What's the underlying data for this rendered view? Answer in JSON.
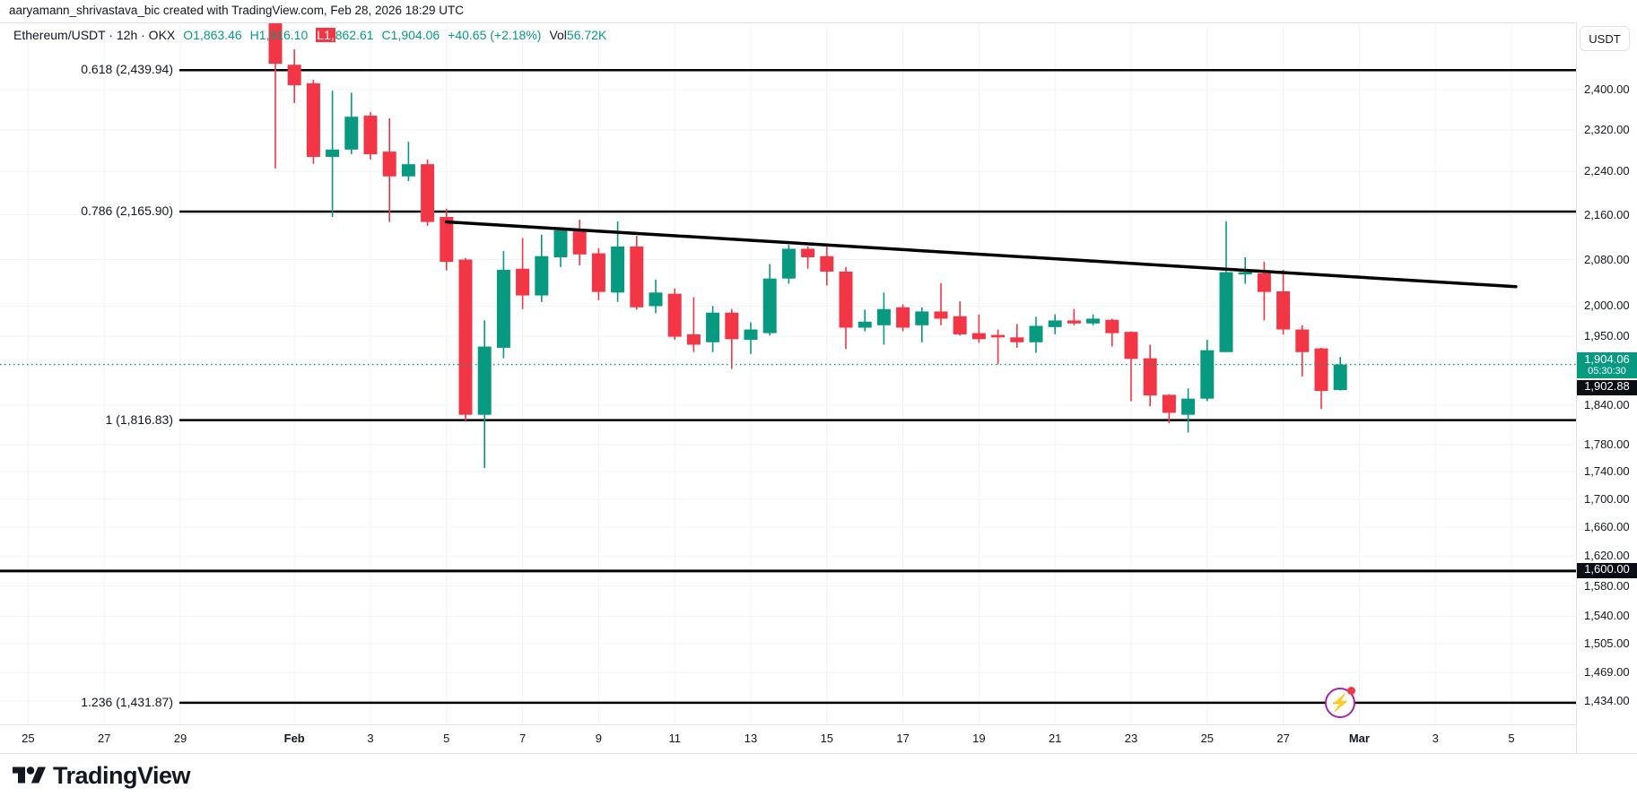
{
  "attribution": "aaryamann_shrivastava_bic created with TradingView.com, Feb 28, 2026 18:29 UTC",
  "legend": {
    "title": "Ethereum/USDT · 12h · OKX",
    "open": "O1,863.46",
    "high": "H1,916.10",
    "low_highlighted": "L1,",
    "low_rest": "862.61",
    "close": "C1,904.06",
    "change": "+40.65 (+2.18%)",
    "vol_label": "Vol",
    "vol_value": "56.72K"
  },
  "colors": {
    "up": "#089981",
    "down": "#f23645",
    "drawing_line": "#000000",
    "grid": "#f0f3fa",
    "text": "#131722",
    "axis_border": "#e0e3eb",
    "badge_dark": "#0c0e15",
    "flash_purple": "#a626aa"
  },
  "right_axis": {
    "currency_button": "USDT",
    "labels": [
      {
        "text": "2,400.00",
        "price": 2400
      },
      {
        "text": "2,320.00",
        "price": 2320
      },
      {
        "text": "2,240.00",
        "price": 2240
      },
      {
        "text": "2,160.00",
        "price": 2160
      },
      {
        "text": "2,080.00",
        "price": 2080
      },
      {
        "text": "2,000.00",
        "price": 2000
      },
      {
        "text": "1,950.00",
        "price": 1950
      },
      {
        "text": "1,840.00",
        "price": 1840
      },
      {
        "text": "1,780.00",
        "price": 1780
      },
      {
        "text": "1,740.00",
        "price": 1740
      },
      {
        "text": "1,700.00",
        "price": 1700
      },
      {
        "text": "1,660.00",
        "price": 1660
      },
      {
        "text": "1,620.00",
        "price": 1620
      },
      {
        "text": "1,580.00",
        "price": 1580
      },
      {
        "text": "1,540.00",
        "price": 1540
      },
      {
        "text": "1,505.00",
        "price": 1505
      },
      {
        "text": "1,469.00",
        "price": 1469
      },
      {
        "text": "1,434.00",
        "price": 1434
      }
    ],
    "badges": [
      {
        "text": "1,904.06",
        "sub": "05:30:30",
        "price": 1904.06,
        "bg": "#089981",
        "kind": "last-price"
      },
      {
        "text": "1,902.88",
        "price": 1902.88,
        "bg": "#0c0e15",
        "kind": "dark"
      },
      {
        "text": "1,600.00",
        "price": 1600,
        "bg": "#0c0e15",
        "kind": "dark"
      }
    ]
  },
  "time_axis": {
    "ticks": [
      {
        "label": "25",
        "ci": -13
      },
      {
        "label": "27",
        "ci": -9
      },
      {
        "label": "29",
        "ci": -5
      },
      {
        "label": "Feb",
        "ci": 1,
        "bold": true
      },
      {
        "label": "3",
        "ci": 5
      },
      {
        "label": "5",
        "ci": 9
      },
      {
        "label": "7",
        "ci": 13
      },
      {
        "label": "9",
        "ci": 17
      },
      {
        "label": "11",
        "ci": 21
      },
      {
        "label": "13",
        "ci": 25
      },
      {
        "label": "15",
        "ci": 29
      },
      {
        "label": "17",
        "ci": 33
      },
      {
        "label": "19",
        "ci": 37
      },
      {
        "label": "21",
        "ci": 41
      },
      {
        "label": "23",
        "ci": 45
      },
      {
        "label": "25",
        "ci": 49
      },
      {
        "label": "27",
        "ci": 53
      },
      {
        "label": "Mar",
        "ci": 57,
        "bold": true
      },
      {
        "label": "3",
        "ci": 61
      },
      {
        "label": "5",
        "ci": 65
      }
    ]
  },
  "chart_data": {
    "type": "candlestick",
    "symbol": "Ethereum/USDT",
    "exchange": "OKX",
    "interval": "12h",
    "scale": "log",
    "ylim": [
      1406,
      2540
    ],
    "grid": true,
    "ohlc_current": {
      "open": 1863.46,
      "high": 1916.1,
      "low": 1862.61,
      "close": 1904.06,
      "change": "+40.65 (+2.18%)",
      "volume": "56.72K"
    },
    "candles": [
      [
        2538,
        2540,
        2246,
        2453
      ],
      [
        2451,
        2483,
        2373,
        2409
      ],
      [
        2413,
        2420,
        2255,
        2268
      ],
      [
        2268,
        2398,
        2156,
        2282
      ],
      [
        2282,
        2394,
        2273,
        2346
      ],
      [
        2348,
        2355,
        2263,
        2273
      ],
      [
        2278,
        2343,
        2147,
        2231
      ],
      [
        2231,
        2297,
        2222,
        2254
      ],
      [
        2254,
        2263,
        2140,
        2147
      ],
      [
        2156,
        2171,
        2061,
        2076
      ],
      [
        2080,
        2083,
        1816,
        1825
      ],
      [
        1825,
        1976,
        1745,
        1933
      ],
      [
        1931,
        2095,
        1914,
        2062
      ],
      [
        2064,
        2118,
        1995,
        2018
      ],
      [
        2018,
        2124,
        2007,
        2086
      ],
      [
        2084,
        2137,
        2067,
        2132
      ],
      [
        2130,
        2151,
        2070,
        2089
      ],
      [
        2091,
        2100,
        2010,
        2024
      ],
      [
        2023,
        2148,
        2007,
        2103
      ],
      [
        2103,
        2122,
        1994,
        1998
      ],
      [
        2000,
        2045,
        1988,
        2023
      ],
      [
        2021,
        2030,
        1944,
        1949
      ],
      [
        1953,
        2015,
        1924,
        1936
      ],
      [
        1940,
        2000,
        1924,
        1989
      ],
      [
        1989,
        1995,
        1897,
        1945
      ],
      [
        1944,
        1973,
        1921,
        1961
      ],
      [
        1955,
        2072,
        1951,
        2047
      ],
      [
        2047,
        2106,
        2038,
        2099
      ],
      [
        2099,
        2103,
        2064,
        2084
      ],
      [
        2086,
        2103,
        2035,
        2059
      ],
      [
        2059,
        2067,
        1929,
        1964
      ],
      [
        1964,
        1994,
        1958,
        1974
      ],
      [
        1968,
        2023,
        1936,
        1995
      ],
      [
        1998,
        2003,
        1958,
        1964
      ],
      [
        1968,
        1998,
        1940,
        1991
      ],
      [
        1991,
        2039,
        1968,
        1979
      ],
      [
        1983,
        2008,
        1951,
        1953
      ],
      [
        1955,
        1986,
        1939,
        1945
      ],
      [
        1952,
        1961,
        1904,
        1948
      ],
      [
        1948,
        1970,
        1931,
        1940
      ],
      [
        1940,
        1982,
        1923,
        1967
      ],
      [
        1965,
        1986,
        1953,
        1976
      ],
      [
        1976,
        1995,
        1968,
        1971
      ],
      [
        1971,
        1986,
        1968,
        1979
      ],
      [
        1977,
        1979,
        1933,
        1955
      ],
      [
        1957,
        1958,
        1846,
        1913
      ],
      [
        1914,
        1936,
        1838,
        1855
      ],
      [
        1856,
        1857,
        1812,
        1828
      ],
      [
        1825,
        1866,
        1798,
        1850
      ],
      [
        1850,
        1944,
        1846,
        1927
      ],
      [
        1924,
        2148,
        1924,
        2058
      ],
      [
        2054,
        2084,
        2038,
        2058
      ],
      [
        2056,
        2076,
        1976,
        2024
      ],
      [
        2025,
        2062,
        1953,
        1961
      ],
      [
        1961,
        1968,
        1885,
        1924
      ],
      [
        1930,
        1931,
        1834,
        1862
      ],
      [
        1863.46,
        1916.1,
        1862.61,
        1904.06
      ]
    ],
    "drawings": {
      "fib_levels": [
        {
          "label": "0.618 (2,439.94)",
          "price": 2439.94
        },
        {
          "label": "0.786 (2,165.90)",
          "price": 2165.9
        },
        {
          "label": "1 (1,816.83)",
          "price": 1816.83
        },
        {
          "label": "1.236 (1,431.87)",
          "price": 1431.87
        }
      ],
      "horizontal_line": {
        "price": 1600,
        "label": "1,600.00"
      },
      "trendline": {
        "from": {
          "ci": 9,
          "price": 2147
        },
        "to": {
          "x": 1690,
          "price": 2033
        }
      },
      "last_price_line": {
        "price": 1904.06,
        "countdown": "05:30:30"
      }
    }
  },
  "footer": {
    "logo_text": "TradingView"
  },
  "flash_marker": {
    "anchor_ci": 56,
    "anchor_price": 1431.87,
    "glyph": "lightning"
  }
}
